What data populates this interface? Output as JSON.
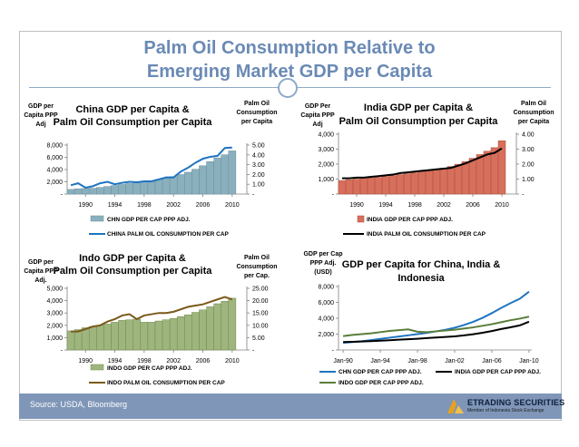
{
  "slide": {
    "title_line1": "Palm Oil Consumption Relative to",
    "title_line2": "Emerging Market GDP per Capita",
    "source": "Source: USDA, Bloomberg",
    "logo_name": "ETRADING SECURITIES",
    "logo_tagline": "Member of Indonesia Stock Exchange"
  },
  "colors": {
    "title": "#6a8ab5",
    "footer": "#7f96b8",
    "rule": "#8da9c9"
  },
  "chart_data": [
    {
      "type": "bar",
      "title": "China GDP per Capita & Palm Oil Consumption per Capita",
      "left_axis_label": [
        "GDP per",
        "Capita PPP",
        "Adj"
      ],
      "right_axis_label": [
        "Palm Oil",
        "Consumption",
        "per Capita"
      ],
      "bar_color": "#8ab0be",
      "bar_edge": "#6a8f9e",
      "line_color": "#1f74c0",
      "x_ticks": [
        "1990",
        "1994",
        "1998",
        "2002",
        "2006",
        "2010"
      ],
      "x": [
        1988,
        1989,
        1990,
        1991,
        1992,
        1993,
        1994,
        1995,
        1996,
        1997,
        1998,
        1999,
        2000,
        2001,
        2002,
        2003,
        2004,
        2005,
        2006,
        2007,
        2008,
        2009,
        2010
      ],
      "ylim": [
        0,
        8000
      ],
      "y_ticks": [
        "-",
        "2,000",
        "4,000",
        "6,000",
        "8,000"
      ],
      "y2lim": [
        0,
        5
      ],
      "y2_ticks": [
        "-",
        "1.00",
        "2.00",
        "3.00",
        "4.00",
        "5.00"
      ],
      "legend": "top-left",
      "series": [
        {
          "name": "CHN GDP PER CAP PPP ADJ.",
          "kind": "bar",
          "axis": "left",
          "values": [
            750,
            850,
            900,
            950,
            1080,
            1240,
            1400,
            1560,
            1710,
            1860,
            2000,
            2160,
            2380,
            2600,
            2850,
            3180,
            3560,
            4050,
            4620,
            5290,
            5900,
            6410,
            7050
          ]
        },
        {
          "name": "CHINA PALM OIL CONSUMPTION PER CAP",
          "kind": "line",
          "axis": "right",
          "values": [
            0.9,
            1.1,
            0.65,
            0.8,
            1.1,
            1.25,
            1.0,
            1.15,
            1.25,
            1.2,
            1.3,
            1.3,
            1.5,
            1.7,
            1.7,
            2.3,
            2.7,
            3.2,
            3.6,
            3.8,
            3.9,
            4.7,
            4.75
          ]
        }
      ]
    },
    {
      "type": "bar",
      "title": "India GDP per Capita & Palm Oil Consumption per Capita",
      "left_axis_label": [
        "GDP Per",
        "Capita PPP",
        "Adj"
      ],
      "right_axis_label": [
        "Palm Oil",
        "Consumption",
        "per Capita"
      ],
      "bar_color": "#d66f5b",
      "bar_edge": "#b04e3b",
      "line_color": "#000000",
      "x_ticks": [
        "1990",
        "1994",
        "1998",
        "2002",
        "2006",
        "2010"
      ],
      "x": [
        1988,
        1989,
        1990,
        1991,
        1992,
        1993,
        1994,
        1995,
        1996,
        1997,
        1998,
        1999,
        2000,
        2001,
        2002,
        2003,
        2004,
        2005,
        2006,
        2007,
        2008,
        2009,
        2010
      ],
      "ylim": [
        0,
        4000
      ],
      "y_ticks": [
        "-",
        "1,000",
        "2,000",
        "3,000",
        "4,000"
      ],
      "y2lim": [
        0,
        4
      ],
      "y2_ticks": [
        "-",
        "1.00",
        "2.00",
        "3.00",
        "4.00"
      ],
      "legend": "top-right",
      "series": [
        {
          "name": "INDIA GDP PER CAP PPP ADJ.",
          "kind": "bar",
          "axis": "left",
          "values": [
            900,
            950,
            1000,
            1030,
            1070,
            1110,
            1170,
            1230,
            1300,
            1360,
            1420,
            1500,
            1570,
            1640,
            1720,
            1840,
            1990,
            2170,
            2390,
            2640,
            2860,
            3100,
            3560
          ]
        },
        {
          "name": "INDIA PALM OIL CONSUMPTION PER CAP",
          "kind": "line",
          "axis": "right",
          "values": [
            1.05,
            1.05,
            1.1,
            1.1,
            1.15,
            1.2,
            1.25,
            1.3,
            1.4,
            1.45,
            1.5,
            1.55,
            1.6,
            1.65,
            1.7,
            1.75,
            1.9,
            2.05,
            2.25,
            2.45,
            2.65,
            2.75,
            3.05
          ]
        }
      ]
    },
    {
      "type": "area",
      "title": "Indo GDP per Capita & Palm Oil Consumption per Capita",
      "left_axis_label": [
        "GDP per",
        "Capita PPP",
        "Adj."
      ],
      "right_axis_label": [
        "Palm Oil",
        "Consumption",
        "per Cap."
      ],
      "bar_color": "#9fb57e",
      "bar_edge": "#6f8a4e",
      "line_color": "#7a5a1a",
      "x_ticks": [
        "1990",
        "1994",
        "1998",
        "2002",
        "2006",
        "2010"
      ],
      "x": [
        1988,
        1989,
        1990,
        1991,
        1992,
        1993,
        1994,
        1995,
        1996,
        1997,
        1998,
        1999,
        2000,
        2001,
        2002,
        2003,
        2004,
        2005,
        2006,
        2007,
        2008,
        2009,
        2010
      ],
      "ylim": [
        0,
        5000
      ],
      "y_ticks": [
        "-",
        "1,000",
        "2,000",
        "3,000",
        "4,000",
        "5,000"
      ],
      "y2lim": [
        0,
        25
      ],
      "y2_ticks": [
        "-",
        "5.00",
        "10.00",
        "15.00",
        "20.00",
        "25.00"
      ],
      "legend": "bottom",
      "series": [
        {
          "name": "INDO GDP PER CAP PPP ADJ.",
          "kind": "bar",
          "axis": "left",
          "values": [
            1550,
            1650,
            1800,
            1900,
            2000,
            2100,
            2250,
            2400,
            2450,
            2500,
            2250,
            2250,
            2350,
            2450,
            2550,
            2700,
            2850,
            3050,
            3250,
            3500,
            3750,
            3950,
            4200
          ]
        },
        {
          "name": "INDO PALM OIL CONSUMPTION PER CAP",
          "kind": "line",
          "axis": "right",
          "values": [
            7.5,
            7.5,
            8.5,
            9.5,
            10.0,
            11.5,
            12.5,
            14.0,
            14.5,
            12.5,
            14.0,
            14.5,
            15.0,
            15.0,
            15.5,
            16.5,
            17.5,
            18.0,
            18.5,
            19.5,
            20.5,
            21.5,
            20.5
          ]
        }
      ]
    },
    {
      "type": "line",
      "title": "GDP per Capita for China, India & Indonesia",
      "left_axis_label": [
        "GDP per Cap",
        "PPP Adj.",
        "(USD)"
      ],
      "x_ticks": [
        "Jan-90",
        "Jan-94",
        "Jan-98",
        "Jan-02",
        "Jan-06",
        "Jan-10"
      ],
      "x": [
        1990,
        1991,
        1992,
        1993,
        1994,
        1995,
        1996,
        1997,
        1998,
        1999,
        2000,
        2001,
        2002,
        2003,
        2004,
        2005,
        2006,
        2007,
        2008,
        2009,
        2010
      ],
      "ylim": [
        0,
        8000
      ],
      "y_ticks": [
        "-",
        "2,000",
        "4,000",
        "6,000",
        "8,000"
      ],
      "legend": "bottom",
      "series": [
        {
          "name": "CHN GDP PER CAP PPP ADJ.",
          "color": "#1f74c0",
          "values": [
            900,
            1000,
            1100,
            1250,
            1400,
            1550,
            1700,
            1850,
            2000,
            2150,
            2350,
            2550,
            2800,
            3150,
            3550,
            4050,
            4650,
            5300,
            5900,
            6450,
            7350
          ]
        },
        {
          "name": "INDIA GDP PER CAP PPP ADJ.",
          "color": "#000000",
          "values": [
            1000,
            1030,
            1070,
            1110,
            1170,
            1230,
            1300,
            1360,
            1420,
            1500,
            1570,
            1640,
            1720,
            1840,
            1990,
            2170,
            2390,
            2640,
            2860,
            3100,
            3560
          ]
        },
        {
          "name": "INDO GDP PER CAP PPP ADJ.",
          "color": "#5a7d3a",
          "values": [
            1750,
            1900,
            2000,
            2100,
            2250,
            2400,
            2500,
            2600,
            2300,
            2250,
            2350,
            2450,
            2550,
            2700,
            2850,
            3050,
            3250,
            3500,
            3750,
            3950,
            4200
          ]
        }
      ]
    }
  ]
}
